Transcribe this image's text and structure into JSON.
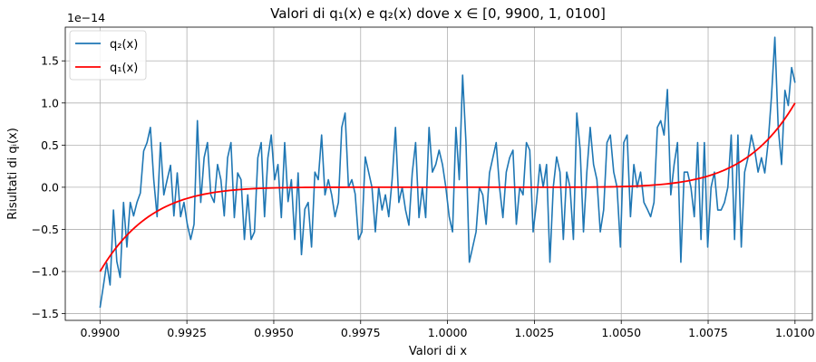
{
  "chart_data": {
    "type": "line",
    "title": "Valori di q₁(x) e q₂(x) dove x ∈ [0, 9900, 1, 0100]",
    "xlabel": "Valori di x",
    "ylabel": "Risultati di qᵢ(x)",
    "y_offset_label": "1e−14",
    "xlim": [
      0.989,
      1.0105
    ],
    "ylim": [
      -1.58,
      1.9
    ],
    "y_scale_factor": 1e-14,
    "grid": true,
    "legend_position": "top-left",
    "x_ticks": [
      0.99,
      0.9925,
      0.995,
      0.9975,
      1.0,
      1.0025,
      1.005,
      1.0075,
      1.01
    ],
    "x_tick_labels": [
      "0.9900",
      "0.9925",
      "0.9950",
      "0.9975",
      "1.0000",
      "1.0025",
      "1.0050",
      "1.0075",
      "1.0100"
    ],
    "y_ticks": [
      -1.5,
      -1.0,
      -0.5,
      0.0,
      0.5,
      1.0,
      1.5
    ],
    "y_tick_labels": [
      "−1.5",
      "−1.0",
      "−0.5",
      "0.0",
      "0.5",
      "1.0",
      "1.5"
    ],
    "series": [
      {
        "name": "q₂(x)",
        "color": "#1f77b4",
        "x_start": 0.99,
        "x_end": 1.01,
        "values": [
          -1.43,
          -1.17,
          -0.9,
          -1.16,
          -0.27,
          -0.88,
          -1.07,
          -0.18,
          -0.71,
          -0.18,
          -0.34,
          -0.18,
          -0.07,
          0.43,
          0.53,
          0.71,
          0.09,
          -0.35,
          0.53,
          -0.09,
          0.09,
          0.26,
          -0.34,
          0.17,
          -0.35,
          -0.18,
          -0.44,
          -0.62,
          -0.44,
          0.79,
          -0.18,
          0.35,
          0.53,
          -0.09,
          -0.18,
          0.27,
          0.09,
          -0.34,
          0.35,
          0.53,
          -0.36,
          0.17,
          0.09,
          -0.62,
          -0.09,
          -0.62,
          -0.53,
          0.35,
          0.53,
          -0.35,
          0.35,
          0.62,
          0.09,
          0.27,
          -0.36,
          0.53,
          -0.17,
          0.09,
          -0.62,
          0.17,
          -0.8,
          -0.26,
          -0.18,
          -0.71,
          0.18,
          0.09,
          0.62,
          -0.09,
          0.09,
          -0.09,
          -0.35,
          -0.18,
          0.71,
          0.88,
          0.0,
          0.09,
          -0.08,
          -0.62,
          -0.53,
          0.36,
          0.18,
          0.0,
          -0.53,
          0.0,
          -0.27,
          -0.09,
          -0.35,
          0.09,
          0.71,
          -0.18,
          0.0,
          -0.27,
          -0.45,
          0.17,
          0.53,
          -0.36,
          0.0,
          -0.36,
          0.71,
          0.18,
          0.27,
          0.44,
          0.27,
          0.0,
          -0.35,
          -0.53,
          0.71,
          0.09,
          1.33,
          0.53,
          -0.89,
          -0.71,
          -0.53,
          0.0,
          -0.09,
          -0.44,
          0.17,
          0.35,
          0.53,
          0.0,
          -0.36,
          0.18,
          0.35,
          0.44,
          -0.44,
          0.0,
          -0.09,
          0.53,
          0.44,
          -0.53,
          -0.18,
          0.27,
          0.0,
          0.27,
          -0.89,
          0.0,
          0.36,
          0.18,
          -0.62,
          0.18,
          0.0,
          -0.62,
          0.88,
          0.45,
          -0.53,
          0.18,
          0.71,
          0.27,
          0.09,
          -0.53,
          -0.27,
          0.53,
          0.62,
          0.18,
          0.0,
          -0.71,
          0.53,
          0.62,
          -0.35,
          0.27,
          0.0,
          0.18,
          -0.18,
          -0.26,
          -0.35,
          -0.18,
          0.71,
          0.79,
          0.62,
          1.16,
          -0.09,
          0.27,
          0.53,
          -0.89,
          0.18,
          0.18,
          0.0,
          -0.35,
          0.53,
          -0.62,
          0.53,
          -0.71,
          0.0,
          0.18,
          -0.27,
          -0.27,
          -0.18,
          0.0,
          0.62,
          -0.62,
          0.62,
          -0.71,
          0.18,
          0.35,
          0.62,
          0.44,
          0.18,
          0.35,
          0.17,
          0.53,
          1.08,
          1.78,
          0.71,
          0.27,
          1.15,
          0.97,
          1.42,
          1.24
        ]
      },
      {
        "name": "q₁(x)",
        "color": "#ff0000",
        "x_start": 0.99,
        "x_end": 1.01,
        "function": "1e14*(x-1)^7",
        "points": 201
      }
    ]
  }
}
